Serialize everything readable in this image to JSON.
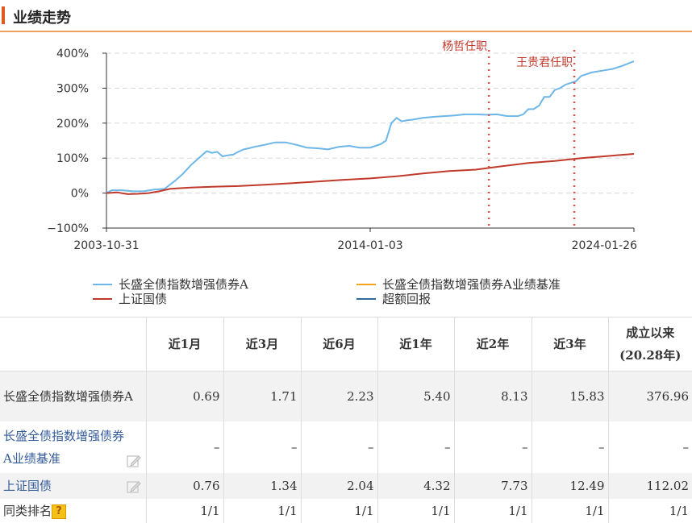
{
  "section": {
    "title": "业绩走势"
  },
  "chart_data": {
    "type": "line",
    "ylim": [
      -100,
      400
    ],
    "yticks": [
      "400%",
      "300%",
      "200%",
      "100%",
      "0%",
      "−100%"
    ],
    "ytick_values": [
      400,
      300,
      200,
      100,
      0,
      -100
    ],
    "xticks": [
      "2003-10-31",
      "2014-01-03",
      "2024-01-26"
    ],
    "xticks_pos": [
      0,
      0.5,
      1
    ],
    "markers": [
      {
        "label": "杨哲任职",
        "x": 0.725,
        "color": "#d9534f"
      },
      {
        "label": "王贵君任职",
        "x": 0.887,
        "color": "#d9534f"
      }
    ],
    "series": [
      {
        "name": "长盛全债指数增强债券A",
        "color": "#6cb6e8",
        "x": [
          0,
          0.01,
          0.03,
          0.05,
          0.07,
          0.09,
          0.11,
          0.13,
          0.145,
          0.16,
          0.175,
          0.19,
          0.2,
          0.21,
          0.22,
          0.23,
          0.24,
          0.25,
          0.26,
          0.27,
          0.28,
          0.3,
          0.32,
          0.34,
          0.36,
          0.38,
          0.4,
          0.42,
          0.44,
          0.46,
          0.48,
          0.5,
          0.52,
          0.53,
          0.54,
          0.55,
          0.56,
          0.57,
          0.58,
          0.6,
          0.62,
          0.64,
          0.66,
          0.68,
          0.7,
          0.72,
          0.74,
          0.76,
          0.78,
          0.79,
          0.8,
          0.81,
          0.82,
          0.83,
          0.84,
          0.85,
          0.86,
          0.87,
          0.88,
          0.89,
          0.9,
          0.92,
          0.94,
          0.96,
          0.98,
          1.0
        ],
        "values": [
          0,
          8,
          8,
          5,
          5,
          10,
          12,
          35,
          55,
          80,
          100,
          120,
          115,
          118,
          105,
          108,
          110,
          118,
          125,
          128,
          132,
          138,
          145,
          145,
          138,
          130,
          128,
          125,
          132,
          135,
          130,
          130,
          140,
          150,
          200,
          215,
          205,
          208,
          210,
          215,
          218,
          220,
          222,
          225,
          225,
          224,
          225,
          220,
          220,
          225,
          240,
          240,
          250,
          275,
          275,
          295,
          300,
          310,
          315,
          320,
          335,
          345,
          350,
          355,
          365,
          377
        ]
      },
      {
        "name": "长盛全债指数增强债券A业绩基准",
        "color": "#f5a31a",
        "x": [],
        "values": []
      },
      {
        "name": "上证国债",
        "color": "#c0392b",
        "x": [
          0,
          0.02,
          0.04,
          0.06,
          0.08,
          0.1,
          0.12,
          0.14,
          0.16,
          0.18,
          0.2,
          0.25,
          0.3,
          0.35,
          0.4,
          0.45,
          0.5,
          0.55,
          0.6,
          0.65,
          0.7,
          0.75,
          0.8,
          0.85,
          0.9,
          0.95,
          1.0
        ],
        "values": [
          0,
          2,
          -3,
          -2,
          0,
          5,
          12,
          14,
          16,
          17,
          18,
          20,
          24,
          28,
          33,
          38,
          42,
          48,
          56,
          63,
          67,
          77,
          86,
          92,
          100,
          106,
          112
        ]
      },
      {
        "name": "超额回报",
        "color": "#2e6b9e",
        "x": [],
        "values": []
      }
    ]
  },
  "table": {
    "headers": [
      "",
      "近1月",
      "近3月",
      "近6月",
      "近1年",
      "近2年",
      "近3年",
      "成立以来\n(20.28年)"
    ],
    "rows": [
      {
        "name": "长盛全债指数增强债券A",
        "values": [
          "0.69",
          "1.71",
          "2.23",
          "5.40",
          "8.13",
          "15.83",
          "376.96"
        ]
      },
      {
        "name": "长盛全债指数增强债券A业绩基准",
        "values": [
          "–",
          "–",
          "–",
          "–",
          "–",
          "–",
          "–"
        ]
      },
      {
        "name": "上证国债",
        "values": [
          "0.76",
          "1.34",
          "2.04",
          "4.32",
          "7.73",
          "12.49",
          "112.02"
        ]
      },
      {
        "name": "同类排名",
        "values": [
          "1/1",
          "1/1",
          "1/1",
          "1/1",
          "1/1",
          "1/1",
          "1/1"
        ]
      }
    ],
    "help_icon_glyph": "?"
  },
  "icons": {
    "edit": "edit-icon",
    "help": "question-icon"
  }
}
